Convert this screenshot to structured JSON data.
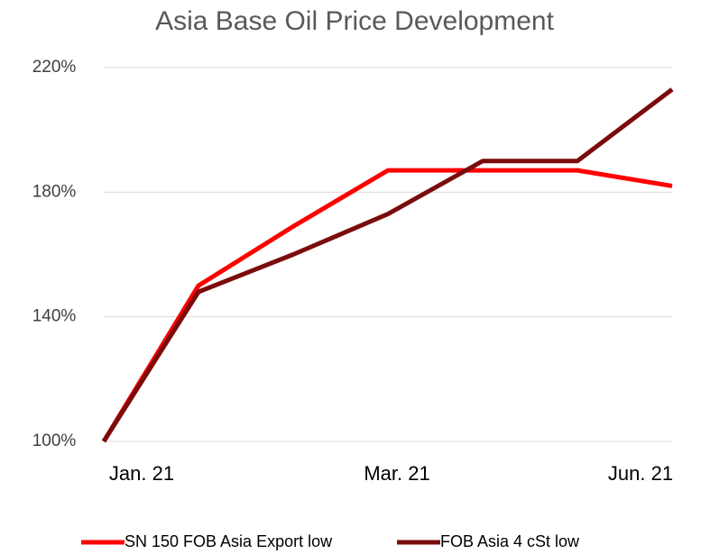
{
  "chart_data": {
    "type": "line",
    "title": "Asia Base Oil Price Development",
    "categories": [
      "Jan. 21",
      null,
      null,
      "Mar. 21",
      null,
      null,
      "Jun. 21"
    ],
    "series": [
      {
        "name": "SN 150 FOB Asia Export low",
        "color": "#ff0000",
        "values": [
          100,
          150,
          169,
          187,
          187,
          187,
          182
        ]
      },
      {
        "name": "FOB Asia 4 cSt low",
        "color": "#7b0c0c",
        "values": [
          100,
          148,
          160,
          173,
          190,
          190,
          213
        ]
      }
    ],
    "ylim": [
      100,
      220
    ],
    "yticks": [
      {
        "value": 100,
        "label": "100%"
      },
      {
        "value": 140,
        "label": "140%"
      },
      {
        "value": 180,
        "label": "180%"
      },
      {
        "value": 220,
        "label": "220%"
      }
    ],
    "grid": true,
    "legend": "bottom"
  }
}
